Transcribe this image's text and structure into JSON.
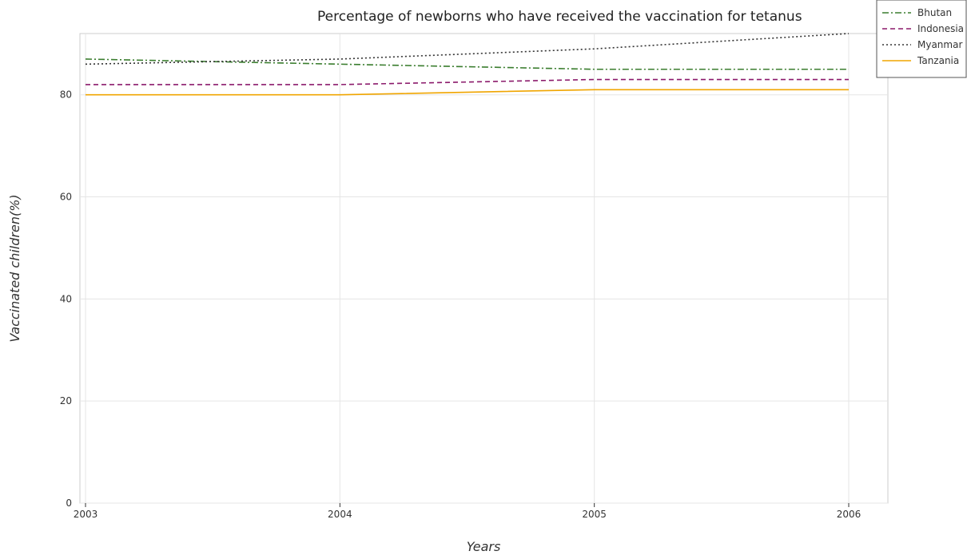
{
  "chart_data": {
    "type": "line",
    "title": "Percentage of newborns who have received the vaccination for tetanus",
    "xlabel": "Years",
    "ylabel": "Vaccinated children(%)",
    "x": [
      "2003",
      "2004",
      "2005",
      "2006"
    ],
    "ylim": [
      0,
      92
    ],
    "yticks": [
      "0",
      "20",
      "40",
      "60",
      "80"
    ],
    "grid": true,
    "legend_position": "top-right",
    "series": [
      {
        "name": "Bhutan",
        "values": [
          87,
          86,
          85,
          85
        ],
        "color": "#3a7d2e",
        "dash": "dashdot"
      },
      {
        "name": "Indonesia",
        "values": [
          82,
          82,
          83,
          83
        ],
        "color": "#8b1a6b",
        "dash": "dashed"
      },
      {
        "name": "Myanmar",
        "values": [
          86,
          87,
          89,
          92
        ],
        "color": "#333333",
        "dash": "dotted"
      },
      {
        "name": "Tanzania",
        "values": [
          80,
          80,
          81,
          81
        ],
        "color": "#f0a500",
        "dash": "solid"
      }
    ]
  }
}
